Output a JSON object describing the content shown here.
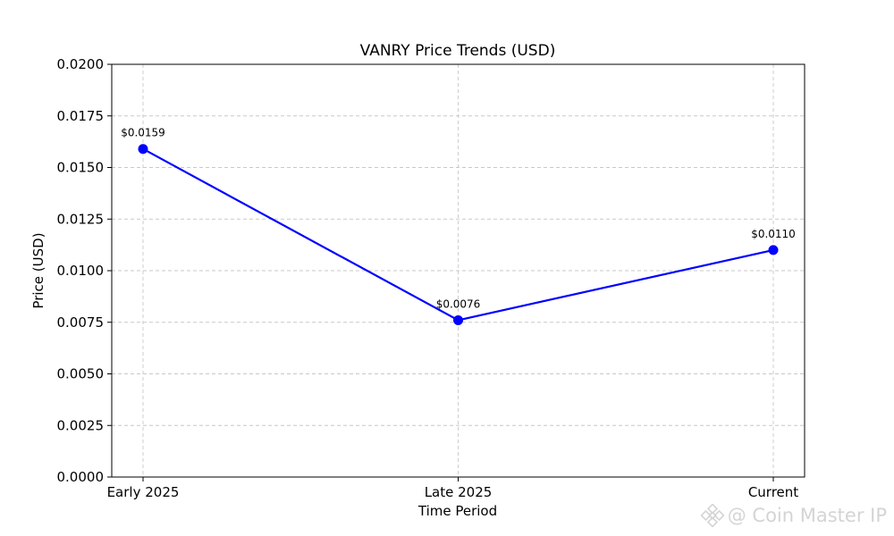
{
  "chart_data": {
    "type": "line",
    "title": "VANRY Price Trends (USD)",
    "xlabel": "Time Period",
    "ylabel": "Price (USD)",
    "categories": [
      "Early 2025",
      "Late 2025",
      "Current"
    ],
    "series": [
      {
        "name": "VANRY",
        "values": [
          0.0159,
          0.0076,
          0.011
        ],
        "color": "#0000ff",
        "data_labels": [
          "$0.0159",
          "$0.0076",
          "$0.0110"
        ]
      }
    ],
    "ylim": [
      0,
      0.02
    ],
    "yticks": [
      0.0,
      0.0025,
      0.005,
      0.0075,
      0.01,
      0.0125,
      0.015,
      0.0175,
      0.02
    ],
    "ytick_labels": [
      "0.0000",
      "0.0025",
      "0.0050",
      "0.0075",
      "0.0100",
      "0.0125",
      "0.0150",
      "0.0175",
      "0.0200"
    ],
    "grid": true,
    "grid_color": "#c8c8c8"
  },
  "watermark": {
    "text": "@ Coin Master IP",
    "icon": "binance-logo-icon",
    "color": "#d4d4d4"
  }
}
